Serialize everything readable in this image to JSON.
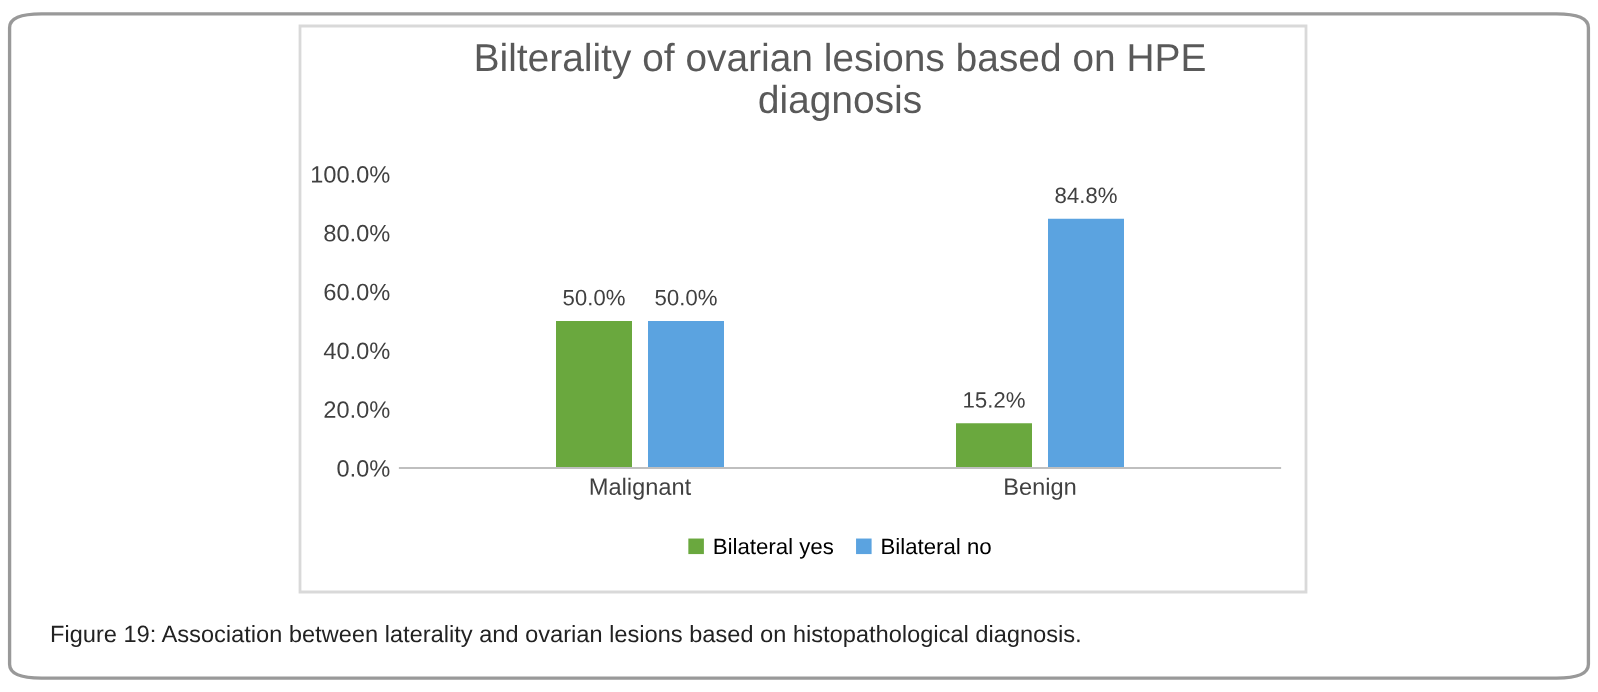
{
  "chart_data": {
    "type": "bar",
    "title": "Bilterality of ovarian lesions based on HPE\ndiagnosis",
    "categories": [
      "Malignant",
      "Benign"
    ],
    "series": [
      {
        "name": "Bilateral yes",
        "color": "#6aa83e",
        "values": [
          50.0,
          15.2
        ],
        "value_labels": [
          "50.0%",
          "15.2%"
        ]
      },
      {
        "name": "Bilateral no",
        "color": "#5ba3e0",
        "values": [
          50.0,
          84.8
        ],
        "value_labels": [
          "50.0%",
          "84.8%"
        ]
      }
    ],
    "ylim": [
      0,
      100
    ],
    "yticks": [
      {
        "value": 0,
        "label": "0.0%"
      },
      {
        "value": 20,
        "label": "20.0%"
      },
      {
        "value": 40,
        "label": "40.0%"
      },
      {
        "value": 60,
        "label": "60.0%"
      },
      {
        "value": 80,
        "label": "80.0%"
      },
      {
        "value": 100,
        "label": "100.0%"
      }
    ],
    "grid": false,
    "legend": "bottom",
    "annotations": [
      "Figure 19: Association between laterality and ovarian lesions based on histopathological diagnosis."
    ]
  }
}
